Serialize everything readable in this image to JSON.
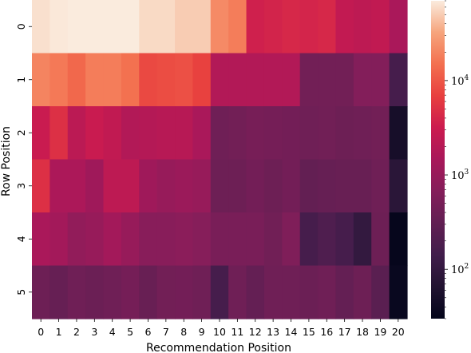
{
  "chart_data": {
    "type": "heatmap",
    "title": "",
    "xlabel": "Recommendation Position",
    "ylabel": "Row Position",
    "x_categories": [
      "0",
      "1",
      "2",
      "3",
      "4",
      "5",
      "6",
      "7",
      "8",
      "9",
      "10",
      "11",
      "12",
      "13",
      "14",
      "15",
      "16",
      "17",
      "18",
      "19",
      "20"
    ],
    "y_categories": [
      "0",
      "1",
      "2",
      "3",
      "4",
      "5"
    ],
    "color_scale": "log",
    "colormap": "rocket",
    "colorbar_range": [
      30,
      70000
    ],
    "colorbar_ticks": [
      {
        "value": 100,
        "base": "10",
        "exp": "2"
      },
      {
        "value": 1000,
        "base": "10",
        "exp": "3"
      },
      {
        "value": 10000,
        "base": "10",
        "exp": "4"
      }
    ],
    "values": [
      [
        62000,
        68000,
        70000,
        70000,
        70000,
        70000,
        58000,
        58000,
        50000,
        50000,
        22000,
        18000,
        3500,
        3800,
        4200,
        3900,
        4200,
        2600,
        2300,
        2500,
        1500
      ],
      [
        20000,
        17000,
        13000,
        18000,
        18000,
        15000,
        8000,
        8500,
        9000,
        7000,
        1800,
        1800,
        1800,
        1800,
        1800,
        450,
        450,
        450,
        650,
        650,
        160
      ],
      [
        3000,
        5000,
        2200,
        3000,
        2500,
        1800,
        1900,
        2000,
        2000,
        1500,
        420,
        450,
        500,
        480,
        460,
        420,
        440,
        400,
        420,
        450,
        50
      ],
      [
        5000,
        1600,
        1600,
        1200,
        2300,
        2300,
        1200,
        1000,
        1100,
        1000,
        400,
        400,
        460,
        400,
        460,
        320,
        340,
        360,
        360,
        420,
        80
      ],
      [
        1500,
        1300,
        900,
        1000,
        1300,
        1000,
        720,
        720,
        780,
        700,
        520,
        520,
        520,
        440,
        600,
        160,
        200,
        160,
        100,
        400,
        32
      ],
      [
        400,
        340,
        420,
        380,
        420,
        480,
        360,
        450,
        460,
        420,
        160,
        420,
        330,
        420,
        420,
        380,
        420,
        330,
        400,
        260,
        35
      ]
    ]
  }
}
